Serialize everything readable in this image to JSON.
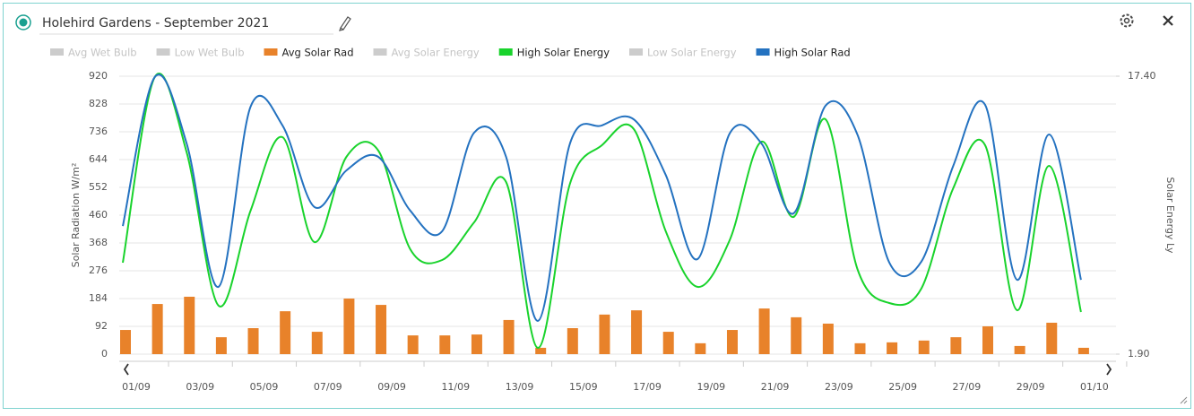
{
  "header": {
    "title": "Holehird Gardens - September 2021"
  },
  "chart_data": {
    "type": "combo",
    "x": [
      "01/09",
      "02/09",
      "03/09",
      "04/09",
      "05/09",
      "06/09",
      "07/09",
      "08/09",
      "09/09",
      "10/09",
      "11/09",
      "12/09",
      "13/09",
      "14/09",
      "15/09",
      "16/09",
      "17/09",
      "18/09",
      "19/09",
      "20/09",
      "21/09",
      "22/09",
      "23/09",
      "24/09",
      "25/09",
      "26/09",
      "27/09",
      "28/09",
      "29/09",
      "30/09",
      "01/10"
    ],
    "xticks": [
      "01/09",
      "03/09",
      "05/09",
      "07/09",
      "09/09",
      "11/09",
      "13/09",
      "15/09",
      "17/09",
      "19/09",
      "21/09",
      "23/09",
      "25/09",
      "27/09",
      "29/09",
      "01/10"
    ],
    "ylabel": "Solar Radiation W/m²",
    "y2label": "Solar Energy Ly",
    "ylim": [
      0,
      920
    ],
    "yticks": [
      0,
      92,
      184,
      276,
      368,
      460,
      552,
      644,
      736,
      828,
      920
    ],
    "y2lim": [
      1.9,
      17.4
    ],
    "y2ticks": [
      {
        "value": 1.9,
        "label": "1.90"
      },
      {
        "value": 17.4,
        "label": "17.40"
      }
    ],
    "grid": true,
    "legend": "top-left",
    "series": [
      {
        "name": "Avg Wet Bulb",
        "color": "#cccccc",
        "visible": false
      },
      {
        "name": "Low Wet Bulb",
        "color": "#cccccc",
        "visible": false
      },
      {
        "name": "Avg Solar Rad",
        "color": "#e8822a",
        "type": "bar",
        "visible": true,
        "values": [
          80,
          166,
          190,
          56,
          86,
          142,
          74,
          184,
          163,
          62,
          62,
          65,
          113,
          21,
          86,
          131,
          145,
          74,
          36,
          80,
          151,
          122,
          101,
          36,
          39,
          45,
          56,
          92,
          27,
          104,
          21
        ]
      },
      {
        "name": "Avg Solar Energy",
        "color": "#cccccc",
        "visible": false
      },
      {
        "name": "High Solar Energy",
        "color": "#19d32c",
        "type": "line",
        "axis": "y2",
        "visible": true,
        "values": [
          7.0,
          17.35,
          13.15,
          4.6,
          9.9,
          14.0,
          8.15,
          12.9,
          13.25,
          7.75,
          7.15,
          9.25,
          11.5,
          2.25,
          11.4,
          13.55,
          14.45,
          8.75,
          5.65,
          8.25,
          13.75,
          9.55,
          15.0,
          6.65,
          4.75,
          5.55,
          11.15,
          13.55,
          4.35,
          12.4,
          4.25
        ]
      },
      {
        "name": "Low Solar Energy",
        "color": "#cccccc",
        "visible": false
      },
      {
        "name": "High Solar Rad",
        "color": "#2472c0",
        "type": "line",
        "visible": true,
        "values": [
          424,
          917,
          697,
          223,
          819,
          757,
          487,
          608,
          653,
          475,
          407,
          733,
          653,
          110,
          697,
          757,
          777,
          593,
          315,
          730,
          697,
          466,
          822,
          727,
          303,
          306,
          623,
          825,
          246,
          727,
          246
        ]
      }
    ]
  }
}
